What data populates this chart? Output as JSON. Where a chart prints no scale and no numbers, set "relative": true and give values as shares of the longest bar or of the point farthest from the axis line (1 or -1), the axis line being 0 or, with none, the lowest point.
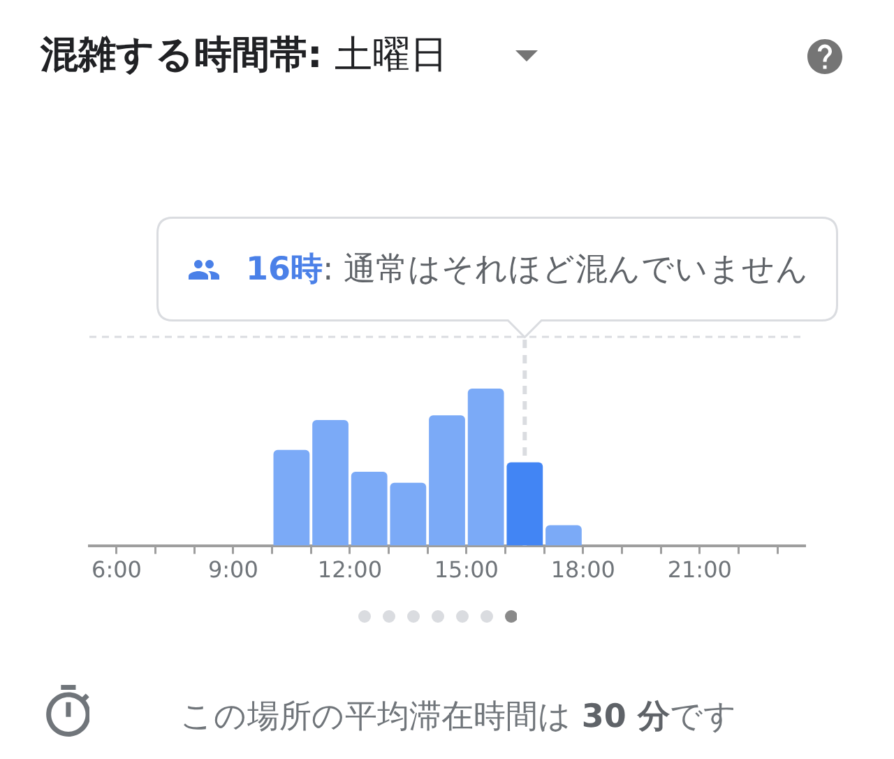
{
  "chart_data": {
    "type": "bar",
    "title": "混雑する時間帯: 土曜日",
    "relative": true,
    "x": [
      10.5,
      11.5,
      12.5,
      13.5,
      14.5,
      15.5,
      16.5,
      17.5
    ],
    "values": [
      0.61,
      0.8,
      0.47,
      0.4,
      0.83,
      1,
      0.53,
      0.13
    ],
    "colors": [
      "#7baaf7",
      "#7baaf7",
      "#7baaf7",
      "#7baaf7",
      "#7baaf7",
      "#7baaf7",
      "#4285f4",
      "#7baaf7"
    ],
    "xlim": [
      5.3,
      23.7
    ],
    "xticks": [
      {
        "value": 6,
        "label": "6:00"
      },
      {
        "value": 7,
        "label": null
      },
      {
        "value": 8,
        "label": null
      },
      {
        "value": 9,
        "label": "9:00"
      },
      {
        "value": 10,
        "label": null
      },
      {
        "value": 11,
        "label": null
      },
      {
        "value": 12,
        "label": "12:00"
      },
      {
        "value": 13,
        "label": null
      },
      {
        "value": 14,
        "label": null
      },
      {
        "value": 15,
        "label": "15:00"
      },
      {
        "value": 16,
        "label": null
      },
      {
        "value": 17,
        "label": null
      },
      {
        "value": 18,
        "label": "18:00"
      },
      {
        "value": 19,
        "label": null
      },
      {
        "value": 20,
        "label": null
      },
      {
        "value": 21,
        "label": "21:00"
      },
      {
        "value": 22,
        "label": null
      },
      {
        "value": 23,
        "label": null
      }
    ],
    "ref_lines": [
      {
        "axis": "y",
        "value": 1.33,
        "color": "#dadce0",
        "line_style": "dashed"
      },
      {
        "axis": "x",
        "value": 16.5,
        "color": "#dadce0",
        "line_style": "dashed"
      }
    ],
    "annotations": [
      "16時: 通常はそれほど混んでいません",
      "この場所の平均滞在時間は 30 分です"
    ]
  }
}
